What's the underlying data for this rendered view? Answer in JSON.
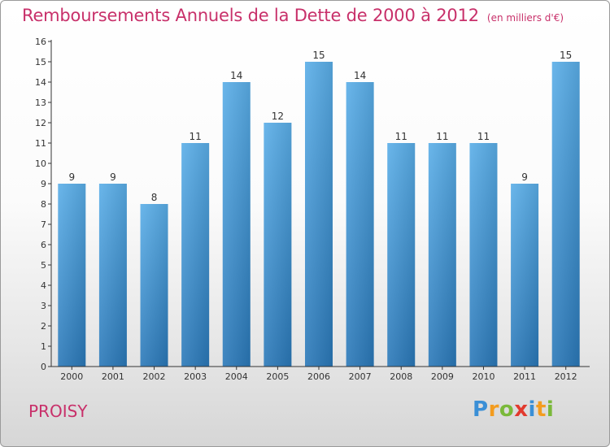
{
  "title": "Remboursements Annuels de la Dette de 2000 à 2012",
  "subtitle": "(en milliers d'€)",
  "commune": "PROISY",
  "logo": "Proxiti",
  "colors": {
    "title": "#c8306a",
    "bar_top": "#5aaee8",
    "bar_bottom": "#2a78b8",
    "axis": "#333333"
  },
  "chart_data": {
    "type": "bar",
    "title": "Remboursements Annuels de la Dette de 2000 à 2012",
    "subtitle": "(en milliers d'€)",
    "categories": [
      "2000",
      "2001",
      "2002",
      "2003",
      "2004",
      "2005",
      "2006",
      "2007",
      "2008",
      "2009",
      "2010",
      "2011",
      "2012"
    ],
    "values": [
      9,
      9,
      8,
      11,
      14,
      12,
      15,
      14,
      11,
      11,
      11,
      9,
      15
    ],
    "data_labels": [
      "9",
      "9",
      "8",
      "11",
      "14",
      "12",
      "15",
      "14",
      "11",
      "11",
      "11",
      "9",
      "15"
    ],
    "yticks": [
      "0",
      "1",
      "2",
      "3",
      "4",
      "5",
      "6",
      "7",
      "8",
      "9",
      "10",
      "11",
      "12",
      "13",
      "14",
      "15",
      "16"
    ],
    "ylim": [
      0,
      16
    ],
    "xlabel": "",
    "ylabel": "",
    "grid": false,
    "legend": "none"
  }
}
